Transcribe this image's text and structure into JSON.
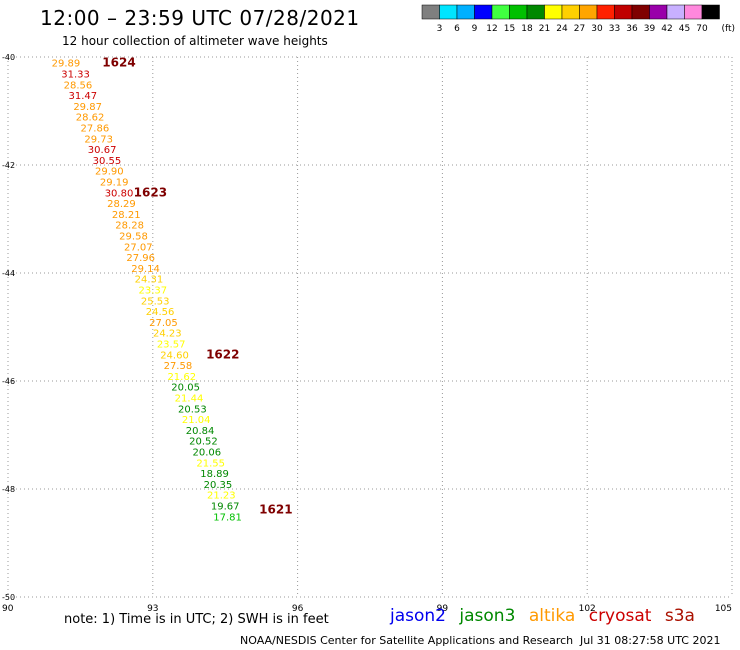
{
  "header": {
    "title": "12:00 – 23:59 UTC 07/28/2021",
    "subtitle": "12 hour collection of altimeter wave heights"
  },
  "color_scale": {
    "unit": "(ft)",
    "ticks": [
      "3",
      "6",
      "9",
      "12",
      "15",
      "18",
      "21",
      "24",
      "27",
      "30",
      "33",
      "36",
      "39",
      "42",
      "45",
      "70"
    ],
    "colors": [
      "#7f7f7f",
      "#00e5ff",
      "#00b0ff",
      "#0000ff",
      "#40ff40",
      "#00c000",
      "#008800",
      "#ffff00",
      "#ffd000",
      "#ffa500",
      "#ff2000",
      "#c00000",
      "#7f0000",
      "#9900aa",
      "#c8b0ff",
      "#ff88dd",
      "#000000"
    ]
  },
  "footer": {
    "note": "note:  1) Time is in UTC;  2) SWH is in feet",
    "satellites": [
      {
        "name": "jason2",
        "color": "#0000ee"
      },
      {
        "name": "jason3",
        "color": "#008800"
      },
      {
        "name": "altika",
        "color": "#ff9900"
      },
      {
        "name": "cryosat",
        "color": "#cc0000"
      },
      {
        "name": "s3a",
        "color": "#aa1100"
      }
    ],
    "credit": "NOAA/NESDIS Center for Satellite Applications and Research",
    "timestamp": "Jul 31 08:27:58 UTC 2021"
  },
  "chart_data": {
    "type": "scatter",
    "x_ticks": [
      "90",
      "93",
      "96",
      "99",
      "102",
      "105"
    ],
    "y_ticks": [
      "-40",
      "-42",
      "-44",
      "-46",
      "-48",
      "-50"
    ],
    "xlim": [
      90,
      105
    ],
    "ylim": [
      -50,
      -40
    ],
    "grid": true,
    "points": [
      {
        "lon": 91.2,
        "lat": -40.18,
        "value": "29.89",
        "color": "#ff9900"
      },
      {
        "lon": 91.4,
        "lat": -40.38,
        "value": "31.33",
        "color": "#cc0000"
      },
      {
        "lon": 91.45,
        "lat": -40.58,
        "value": "28.56",
        "color": "#ff9900"
      },
      {
        "lon": 91.55,
        "lat": -40.78,
        "value": "31.47",
        "color": "#cc0000"
      },
      {
        "lon": 91.65,
        "lat": -40.98,
        "value": "29.87",
        "color": "#ff9900"
      },
      {
        "lon": 91.7,
        "lat": -41.18,
        "value": "28.62",
        "color": "#ff9900"
      },
      {
        "lon": 91.8,
        "lat": -41.38,
        "value": "27.86",
        "color": "#ff9900"
      },
      {
        "lon": 91.88,
        "lat": -41.58,
        "value": "29.73",
        "color": "#ff9900"
      },
      {
        "lon": 91.95,
        "lat": -41.78,
        "value": "30.67",
        "color": "#cc0000"
      },
      {
        "lon": 92.05,
        "lat": -41.98,
        "value": "30.55",
        "color": "#cc0000"
      },
      {
        "lon": 92.1,
        "lat": -42.18,
        "value": "29.90",
        "color": "#ff9900"
      },
      {
        "lon": 92.2,
        "lat": -42.38,
        "value": "29.19",
        "color": "#ff9900"
      },
      {
        "lon": 92.3,
        "lat": -42.58,
        "value": "30.80",
        "color": "#cc0000"
      },
      {
        "lon": 92.35,
        "lat": -42.78,
        "value": "28.29",
        "color": "#ff9900"
      },
      {
        "lon": 92.45,
        "lat": -42.98,
        "value": "28.21",
        "color": "#ff9900"
      },
      {
        "lon": 92.52,
        "lat": -43.18,
        "value": "28.28",
        "color": "#ff9900"
      },
      {
        "lon": 92.6,
        "lat": -43.38,
        "value": "29.58",
        "color": "#ff9900"
      },
      {
        "lon": 92.7,
        "lat": -43.58,
        "value": "27.07",
        "color": "#ff9900"
      },
      {
        "lon": 92.75,
        "lat": -43.78,
        "value": "27.96",
        "color": "#ff9900"
      },
      {
        "lon": 92.85,
        "lat": -43.98,
        "value": "29.14",
        "color": "#ff9900"
      },
      {
        "lon": 92.92,
        "lat": -44.18,
        "value": "24.31",
        "color": "#ffd000"
      },
      {
        "lon": 93.0,
        "lat": -44.38,
        "value": "23.37",
        "color": "#ffff00"
      },
      {
        "lon": 93.05,
        "lat": -44.58,
        "value": "25.53",
        "color": "#ffd000"
      },
      {
        "lon": 93.15,
        "lat": -44.78,
        "value": "24.56",
        "color": "#ffd000"
      },
      {
        "lon": 93.22,
        "lat": -44.98,
        "value": "27.05",
        "color": "#ff9900"
      },
      {
        "lon": 93.3,
        "lat": -45.18,
        "value": "24.23",
        "color": "#ffd000"
      },
      {
        "lon": 93.38,
        "lat": -45.38,
        "value": "23.57",
        "color": "#ffff00"
      },
      {
        "lon": 93.45,
        "lat": -45.58,
        "value": "24.60",
        "color": "#ffd000"
      },
      {
        "lon": 93.52,
        "lat": -45.78,
        "value": "27.58",
        "color": "#ff9900"
      },
      {
        "lon": 93.6,
        "lat": -45.98,
        "value": "21.62",
        "color": "#ffff00"
      },
      {
        "lon": 93.68,
        "lat": -46.18,
        "value": "20.05",
        "color": "#008800"
      },
      {
        "lon": 93.75,
        "lat": -46.38,
        "value": "21.44",
        "color": "#ffff00"
      },
      {
        "lon": 93.82,
        "lat": -46.58,
        "value": "20.53",
        "color": "#008800"
      },
      {
        "lon": 93.9,
        "lat": -46.78,
        "value": "21.04",
        "color": "#ffff00"
      },
      {
        "lon": 93.98,
        "lat": -46.98,
        "value": "20.84",
        "color": "#008800"
      },
      {
        "lon": 94.05,
        "lat": -47.18,
        "value": "20.52",
        "color": "#008800"
      },
      {
        "lon": 94.12,
        "lat": -47.38,
        "value": "20.06",
        "color": "#008800"
      },
      {
        "lon": 94.2,
        "lat": -47.58,
        "value": "21.55",
        "color": "#ffff00"
      },
      {
        "lon": 94.28,
        "lat": -47.78,
        "value": "18.89",
        "color": "#008800"
      },
      {
        "lon": 94.35,
        "lat": -47.98,
        "value": "20.35",
        "color": "#008800"
      },
      {
        "lon": 94.42,
        "lat": -48.18,
        "value": "21.23",
        "color": "#ffff00"
      },
      {
        "lon": 94.5,
        "lat": -48.38,
        "value": "19.67",
        "color": "#008800"
      },
      {
        "lon": 94.55,
        "lat": -48.58,
        "value": "17.81",
        "color": "#00c000"
      }
    ],
    "time_labels": [
      {
        "lon": 92.3,
        "lat": -40.18,
        "label": "1624"
      },
      {
        "lon": 92.95,
        "lat": -42.58,
        "label": "1623"
      },
      {
        "lon": 94.45,
        "lat": -45.58,
        "label": "1622"
      },
      {
        "lon": 95.55,
        "lat": -48.45,
        "label": "1621"
      }
    ]
  }
}
